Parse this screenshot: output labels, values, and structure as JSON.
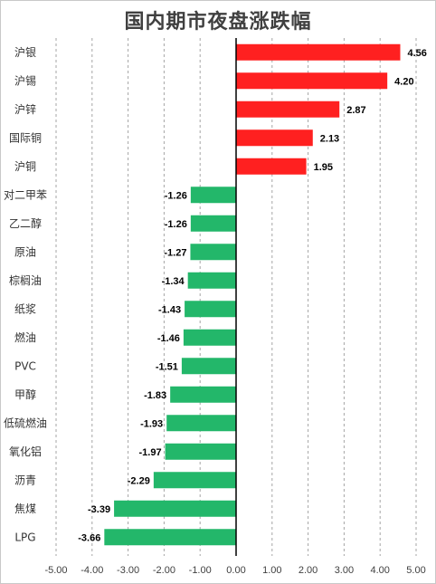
{
  "chart_data": {
    "type": "bar",
    "orientation": "horizontal",
    "title": "国内期市夜盘涨跌幅",
    "categories": [
      "沪银",
      "沪锡",
      "沪锌",
      "国际铜",
      "沪铜",
      "对二甲苯",
      "乙二醇",
      "原油",
      "棕榈油",
      "纸浆",
      "燃油",
      "PVC",
      "甲醇",
      "低硫燃油",
      "氧化铝",
      "沥青",
      "焦煤",
      "LPG"
    ],
    "values": [
      4.56,
      4.2,
      2.87,
      2.13,
      1.95,
      -1.26,
      -1.26,
      -1.27,
      -1.34,
      -1.43,
      -1.46,
      -1.51,
      -1.83,
      -1.93,
      -1.97,
      -2.29,
      -3.39,
      -3.66
    ],
    "value_labels": [
      "4.56",
      "4.20",
      "2.87",
      "2.13",
      "1.95",
      "-1.26",
      "-1.26",
      "-1.27",
      "-1.34",
      "-1.43",
      "-1.46",
      "-1.51",
      "-1.83",
      "-1.93",
      "-1.97",
      "-2.29",
      "-3.39",
      "-3.66"
    ],
    "xlim": [
      -5,
      5
    ],
    "x_ticks": [
      -5,
      -4,
      -3,
      -2,
      -1,
      0,
      1,
      2,
      3,
      4,
      5
    ],
    "x_tick_labels": [
      "-5.00",
      "-4.00",
      "-3.00",
      "-2.00",
      "-1.00",
      "0.00",
      "1.00",
      "2.00",
      "3.00",
      "4.00",
      "5.00"
    ],
    "grid": "vertical dashed",
    "legend": "none",
    "colors": {
      "positive": "#ff2020",
      "negative": "#23b76a",
      "axis": "#000000",
      "grid": "#a6a6a6"
    }
  }
}
